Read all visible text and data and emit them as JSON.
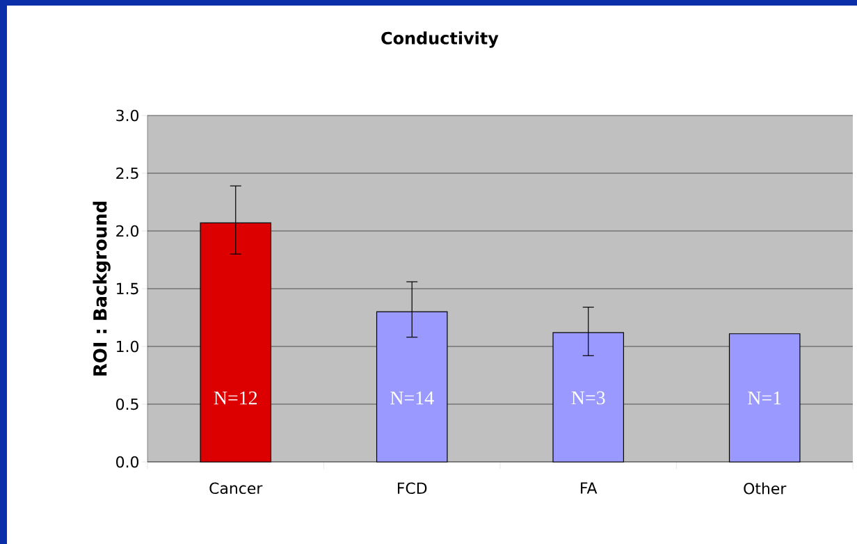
{
  "chart_data": {
    "type": "bar",
    "title": "Conductivity",
    "ylabel": "ROI : Background",
    "categories": [
      "Cancer",
      "FCD",
      "FA",
      "Other"
    ],
    "values": [
      2.07,
      1.3,
      1.12,
      1.11
    ],
    "colors": [
      "#dd0000",
      "#9999ff",
      "#9999ff",
      "#9999ff"
    ],
    "errors": [
      [
        1.8,
        2.39
      ],
      [
        1.08,
        1.56
      ],
      [
        0.92,
        1.34
      ],
      null
    ],
    "ylim": [
      0,
      3
    ],
    "yticks": [
      {
        "value": 0,
        "label": "0.0"
      },
      {
        "value": 0.5,
        "label": "0.5"
      },
      {
        "value": 1,
        "label": "1.0"
      },
      {
        "value": 1.5,
        "label": "1.5"
      },
      {
        "value": 2,
        "label": "2.0"
      },
      {
        "value": 2.5,
        "label": "2.5"
      },
      {
        "value": 3,
        "label": "3.0"
      }
    ],
    "grid": "y",
    "annotations": [
      "N=12",
      "N=14",
      "N=3",
      "N=1"
    ]
  }
}
